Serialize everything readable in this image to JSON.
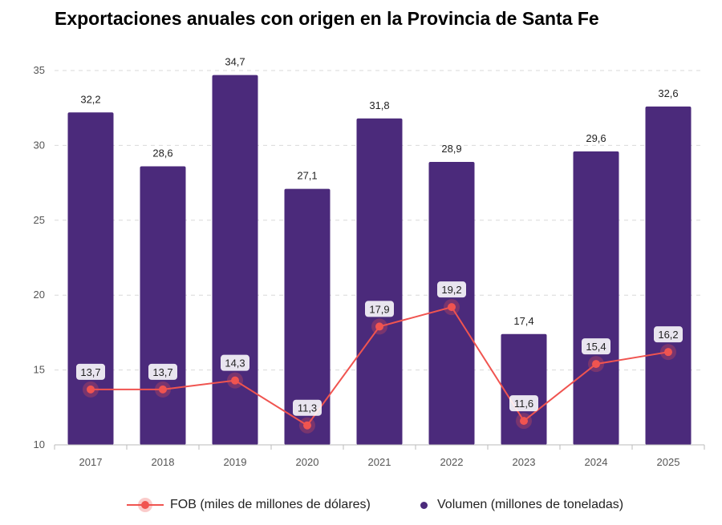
{
  "title": "Exportaciones anuales con origen en la Provincia de Santa Fe",
  "colors": {
    "bar": "#4B2A7B",
    "line": "#F05450",
    "grid": "#D9D9D9",
    "axis": "#BBBBBB"
  },
  "chart_data": {
    "type": "bar",
    "title": "Exportaciones anuales con origen en la Provincia de Santa Fe",
    "categories": [
      "2017",
      "2018",
      "2019",
      "2020",
      "2021",
      "2022",
      "2023",
      "2024",
      "2025"
    ],
    "ylim": [
      10,
      35
    ],
    "yticks": [
      10,
      15,
      20,
      25,
      30,
      35
    ],
    "grid": true,
    "legend_position": "bottom",
    "series": [
      {
        "name": "Volumen (millones de toneladas)",
        "type": "bar",
        "values": [
          32.2,
          28.6,
          34.7,
          27.1,
          31.8,
          28.9,
          17.4,
          29.6,
          32.6
        ],
        "labels": [
          "32,2",
          "28,6",
          "34,7",
          "27,1",
          "31,8",
          "28,9",
          "17,4",
          "29,6",
          "32,6"
        ]
      },
      {
        "name": "FOB (miles de millones de dólares)",
        "type": "line",
        "values": [
          13.7,
          13.7,
          14.3,
          11.3,
          17.9,
          19.2,
          11.6,
          15.4,
          16.2
        ],
        "labels": [
          "13,7",
          "13,7",
          "14,3",
          "11,3",
          "17,9",
          "19,2",
          "11,6",
          "15,4",
          "16,2"
        ]
      }
    ]
  },
  "legend": {
    "line_label": "FOB (miles de millones de dólares)",
    "bar_label": "Volumen (millones de toneladas)"
  }
}
